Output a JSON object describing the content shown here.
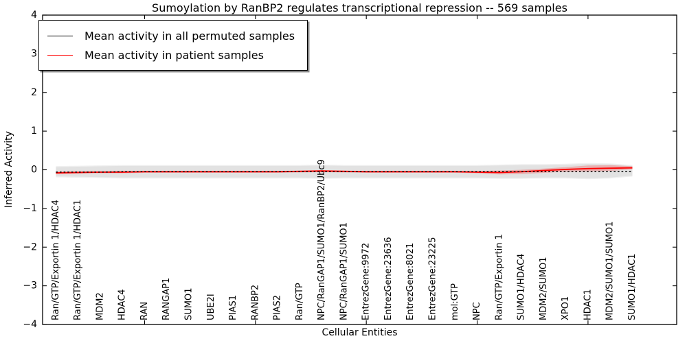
{
  "chart_data": {
    "type": "line",
    "title": "Sumoylation by RanBP2 regulates transcriptional repression -- 569 samples",
    "xlabel": "Cellular Entities",
    "ylabel": "Inferred Activity",
    "xlim": [
      0.4,
      29.0
    ],
    "ylim": [
      -4,
      4
    ],
    "yticks": [
      4,
      3,
      2,
      1,
      0,
      -1,
      -2,
      -3,
      -4
    ],
    "xticks_major": [
      5,
      10,
      15,
      20,
      25
    ],
    "grid": false,
    "legend_position": "upper left",
    "categories": [
      "Ran/GTP/Exportin 1/HDAC4",
      "Ran/GTP/Exportin 1/HDAC1",
      "MDM2",
      "HDAC4",
      "RAN",
      "RANGAP1",
      "SUMO1",
      "UBE2I",
      "PIAS1",
      "RANBP2",
      "PIAS2",
      "Ran/GTP",
      "NPC/RanGAP1/SUMO1/RanBP2/Ubc9",
      "NPC/RanGAP1/SUMO1",
      "EntrezGene:9972",
      "EntrezGene:23636",
      "EntrezGene:8021",
      "EntrezGene:23225",
      "mol:GTP",
      "NPC",
      "Ran/GTP/Exportin 1",
      "SUMO1/HDAC4",
      "MDM2/SUMO1",
      "XPO1",
      "HDAC1",
      "MDM2/SUMO1/SUMO1",
      "SUMO1/HDAC1"
    ],
    "series": [
      {
        "name": "Mean activity in all permuted samples",
        "color": "#000000",
        "line_style": "solid",
        "values": [
          -0.06,
          -0.06,
          -0.06,
          -0.05,
          -0.05,
          -0.05,
          -0.05,
          -0.05,
          -0.05,
          -0.05,
          -0.05,
          -0.05,
          -0.05,
          -0.05,
          -0.05,
          -0.05,
          -0.05,
          -0.05,
          -0.05,
          -0.05,
          -0.05,
          -0.05,
          -0.05,
          -0.05,
          -0.05,
          -0.04,
          -0.04
        ]
      },
      {
        "name": "Mean activity in patient samples",
        "color": "#ff0000",
        "line_style": "solid",
        "values": [
          -0.08,
          -0.07,
          -0.06,
          -0.06,
          -0.05,
          -0.05,
          -0.05,
          -0.05,
          -0.05,
          -0.05,
          -0.05,
          -0.04,
          -0.03,
          -0.04,
          -0.05,
          -0.05,
          -0.05,
          -0.05,
          -0.05,
          -0.06,
          -0.07,
          -0.05,
          -0.02,
          0.01,
          0.03,
          0.04,
          0.05
        ]
      }
    ],
    "bands": [
      {
        "name": "permuted-sample-envelope",
        "color": "#e2e2e2",
        "upper": [
          0.07,
          0.08,
          0.09,
          0.1,
          0.1,
          0.1,
          0.1,
          0.1,
          0.1,
          0.1,
          0.1,
          0.1,
          0.11,
          0.1,
          0.1,
          0.1,
          0.1,
          0.1,
          0.1,
          0.1,
          0.11,
          0.12,
          0.12,
          0.13,
          0.15,
          0.14,
          0.1
        ],
        "lower": [
          -0.17,
          -0.18,
          -0.19,
          -0.2,
          -0.2,
          -0.2,
          -0.2,
          -0.2,
          -0.2,
          -0.2,
          -0.2,
          -0.2,
          -0.21,
          -0.2,
          -0.2,
          -0.2,
          -0.2,
          -0.2,
          -0.2,
          -0.2,
          -0.21,
          -0.21,
          -0.2,
          -0.2,
          -0.22,
          -0.2,
          -0.15
        ]
      },
      {
        "name": "patient-sample-spread",
        "color": "rgba(255,0,0,0.22)",
        "upper": [
          -0.05,
          -0.04,
          -0.04,
          -0.03,
          -0.03,
          -0.03,
          -0.03,
          -0.03,
          -0.03,
          -0.03,
          -0.03,
          -0.02,
          -0.01,
          -0.02,
          -0.03,
          -0.03,
          -0.03,
          -0.03,
          -0.03,
          -0.03,
          -0.02,
          0.0,
          0.03,
          0.07,
          0.11,
          0.12,
          0.09
        ],
        "lower": [
          -0.11,
          -0.1,
          -0.09,
          -0.09,
          -0.08,
          -0.08,
          -0.08,
          -0.08,
          -0.08,
          -0.08,
          -0.08,
          -0.07,
          -0.06,
          -0.07,
          -0.08,
          -0.08,
          -0.08,
          -0.08,
          -0.08,
          -0.09,
          -0.12,
          -0.11,
          -0.08,
          -0.05,
          -0.04,
          -0.03,
          0.01
        ]
      }
    ]
  }
}
